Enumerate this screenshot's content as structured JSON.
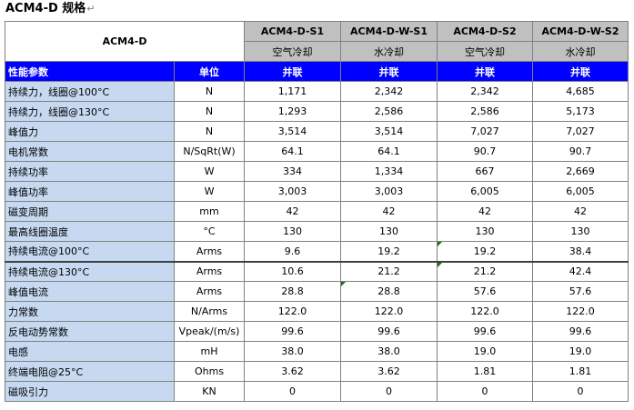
{
  "page_title": "ACM4-D  规格",
  "para_mark": "↵",
  "table": {
    "model_label": "ACM4-D",
    "variants": [
      "ACM4-D-S1",
      "ACM4-D-W-S1",
      "ACM4-D-S2",
      "ACM4-D-W-S2"
    ],
    "cooling": [
      "空气冷却",
      "水冷却",
      "空气冷却",
      "水冷却"
    ],
    "section": {
      "label": "性能参数",
      "unit_header": "单位",
      "connections": [
        "并联",
        "并联",
        "并联",
        "并联"
      ]
    },
    "rows": [
      {
        "param": "持续力，线圈@100°C",
        "unit": "N",
        "values": [
          "1,171",
          "2,342",
          "2,342",
          "4,685"
        ]
      },
      {
        "param": "持续力，线圈@130°C",
        "unit": "N",
        "values": [
          "1,293",
          "2,586",
          "2,586",
          "5,173"
        ]
      },
      {
        "param": "峰值力",
        "unit": "N",
        "values": [
          "3,514",
          "3,514",
          "7,027",
          "7,027"
        ]
      },
      {
        "param": "电机常数",
        "unit": "N/SqRt(W)",
        "values": [
          "64.1",
          "64.1",
          "90.7",
          "90.7"
        ]
      },
      {
        "param": "持续功率",
        "unit": "W",
        "values": [
          "334",
          "1,334",
          "667",
          "2,669"
        ]
      },
      {
        "param": "峰值功率",
        "unit": "W",
        "values": [
          "3,003",
          "3,003",
          "6,005",
          "6,005"
        ]
      },
      {
        "param": "磁变周期",
        "unit": "mm",
        "values": [
          "42",
          "42",
          "42",
          "42"
        ]
      },
      {
        "param": "最高线圈温度",
        "unit": "°C",
        "values": [
          "130",
          "130",
          "130",
          "130"
        ]
      },
      {
        "param": "持续电流@100°C",
        "unit": "Arms",
        "values": [
          "9.6",
          "19.2",
          "19.2",
          "38.4"
        ]
      },
      {
        "param": "持续电流@130°C",
        "unit": "Arms",
        "values": [
          "10.6",
          "21.2",
          "21.2",
          "42.4"
        ]
      },
      {
        "param": "峰值电流",
        "unit": "Arms",
        "values": [
          "28.8",
          "28.8",
          "57.6",
          "57.6"
        ]
      },
      {
        "param": "力常数",
        "unit": "N/Arms",
        "values": [
          "122.0",
          "122.0",
          "122.0",
          "122.0"
        ]
      },
      {
        "param": "反电动势常数",
        "unit": "Vpeak/(m/s)",
        "values": [
          "99.6",
          "99.6",
          "99.6",
          "99.6"
        ]
      },
      {
        "param": "电感",
        "unit": "mH",
        "values": [
          "38.0",
          "38.0",
          "19.0",
          "19.0"
        ]
      },
      {
        "param": "终端电阻@25°C",
        "unit": "Ohms",
        "values": [
          "3.62",
          "3.62",
          "1.81",
          "1.81"
        ]
      },
      {
        "param": "磁吸引力",
        "unit": "KN",
        "values": [
          "0",
          "0",
          "0",
          "0"
        ]
      }
    ]
  }
}
